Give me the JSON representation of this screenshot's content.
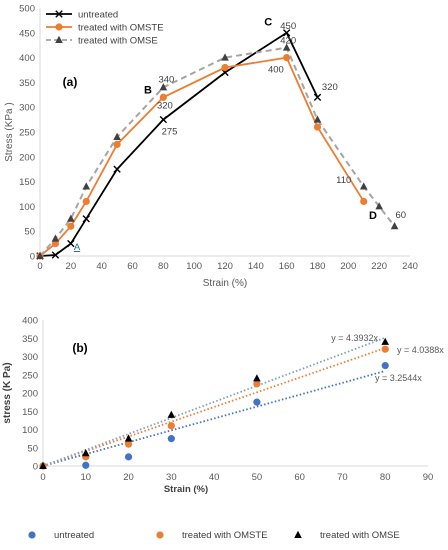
{
  "chart_data": [
    {
      "panel_label": "(a)",
      "type": "line",
      "xlabel": "Strain (%)",
      "ylabel": "Stress (KPa )",
      "xlim": [
        0,
        240
      ],
      "ylim": [
        0,
        500
      ],
      "x_ticks": [
        0,
        20,
        40,
        60,
        80,
        100,
        120,
        140,
        160,
        180,
        200,
        220,
        240
      ],
      "y_ticks": [
        0,
        50,
        100,
        150,
        200,
        250,
        300,
        350,
        400,
        450,
        500
      ],
      "grid": false,
      "legend": "top-left",
      "series": [
        {
          "name": "untreated",
          "color": "#000000",
          "marker": "x",
          "line": "solid",
          "x": [
            0,
            10,
            20,
            30,
            50,
            80,
            120,
            160,
            180
          ],
          "y": [
            0,
            2,
            25,
            75,
            175,
            275,
            370,
            450,
            320
          ]
        },
        {
          "name": "treated with OMSTE",
          "color": "#ed7d31",
          "marker": "circle",
          "line": "solid",
          "x": [
            0,
            10,
            20,
            30,
            50,
            80,
            120,
            160,
            180,
            210
          ],
          "y": [
            0,
            25,
            60,
            110,
            225,
            320,
            380,
            400,
            260,
            110
          ]
        },
        {
          "name": "treated with OMSE",
          "color": "#a5a5a5",
          "marker": "triangle",
          "line": "dashed",
          "x": [
            0,
            10,
            20,
            30,
            50,
            80,
            120,
            160,
            180,
            210,
            220,
            230
          ],
          "y": [
            0,
            35,
            75,
            140,
            240,
            340,
            400,
            420,
            275,
            140,
            100,
            60
          ]
        }
      ],
      "annotations": [
        {
          "text": "450",
          "x": 161,
          "y": 458
        },
        {
          "text": "420",
          "x": 161,
          "y": 428
        },
        {
          "text": "400",
          "x": 153,
          "y": 370
        },
        {
          "text": "340",
          "x": 82,
          "y": 350
        },
        {
          "text": "320",
          "x": 81,
          "y": 297
        },
        {
          "text": "275",
          "x": 84,
          "y": 245
        },
        {
          "text": "320",
          "x": 188,
          "y": 335
        },
        {
          "text": "110",
          "x": 197,
          "y": 147
        },
        {
          "text": "60",
          "x": 234,
          "y": 77
        },
        {
          "text": "A",
          "x": 24,
          "y": 12,
          "color": "#1f6f8b",
          "underline": true
        },
        {
          "text": "B",
          "x": 70,
          "y": 328,
          "bold": true
        },
        {
          "text": "C",
          "x": 148,
          "y": 465,
          "bold": true
        },
        {
          "text": "D",
          "x": 216,
          "y": 75,
          "bold": true
        }
      ]
    },
    {
      "panel_label": "(b)",
      "type": "scatter",
      "xlabel": "Strain (%)",
      "ylabel": "stress (K Pa)",
      "xlim": [
        0,
        90
      ],
      "ylim": [
        0,
        400
      ],
      "x_ticks": [
        0,
        10,
        20,
        30,
        40,
        50,
        60,
        70,
        80,
        90
      ],
      "y_ticks": [
        0,
        50,
        100,
        150,
        200,
        250,
        300,
        350,
        400
      ],
      "grid": false,
      "legend": "bottom",
      "series": [
        {
          "name": "untreated",
          "color": "#4472c4",
          "marker": "circle",
          "x": [
            0,
            10,
            20,
            30,
            50,
            80
          ],
          "y": [
            0,
            2,
            25,
            75,
            175,
            275
          ],
          "trendline": {
            "slope": 3.2544,
            "label": "y = 3.2544x"
          }
        },
        {
          "name": "treated with OMSTE",
          "color": "#ed7d31",
          "marker": "circle",
          "x": [
            0,
            10,
            20,
            30,
            50,
            80
          ],
          "y": [
            0,
            25,
            60,
            110,
            225,
            320
          ],
          "trendline": {
            "slope": 4.0388,
            "label": "y = 4.0388x"
          }
        },
        {
          "name": "treated with OMSE",
          "color": "#000000",
          "marker": "triangle",
          "x": [
            0,
            10,
            20,
            30,
            50,
            80
          ],
          "y": [
            0,
            35,
            75,
            140,
            240,
            340
          ],
          "trendline": {
            "slope": 4.3932,
            "label": "y = 4.3932x",
            "color": "#7f9fbf"
          }
        }
      ]
    }
  ]
}
